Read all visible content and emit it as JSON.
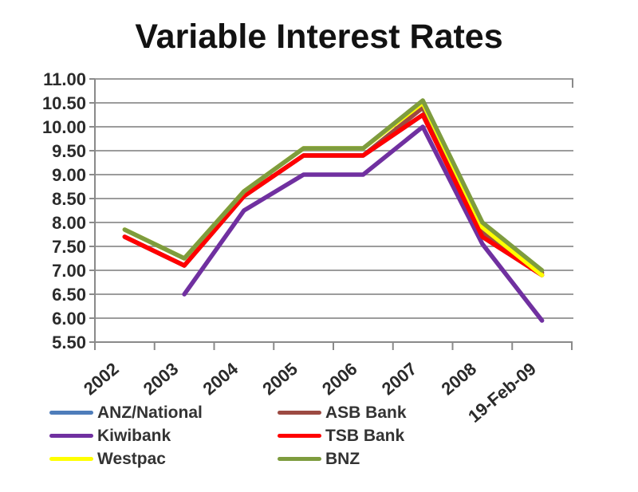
{
  "chart_data": {
    "type": "line",
    "title": "Variable Interest Rates",
    "categories": [
      "2002",
      "2003",
      "2004",
      "2005",
      "2006",
      "2007",
      "2008",
      "19-Feb-09"
    ],
    "series": [
      {
        "name": "ANZ/National",
        "color": "#4E7DBA",
        "values": [
          7.7,
          7.1,
          8.55,
          9.4,
          9.4,
          10.25,
          7.7,
          6.9
        ]
      },
      {
        "name": "ASB Bank",
        "color": "#9C4A42",
        "values": [
          7.7,
          7.1,
          8.55,
          9.4,
          9.4,
          10.4,
          7.8,
          6.95
        ]
      },
      {
        "name": "Kiwibank",
        "color": "#7030A0",
        "values": [
          null,
          6.5,
          8.25,
          9.0,
          9.0,
          10.0,
          7.55,
          5.95
        ]
      },
      {
        "name": "TSB Bank",
        "color": "#FF0000",
        "values": [
          7.7,
          7.1,
          8.55,
          9.4,
          9.4,
          10.25,
          7.7,
          6.9
        ]
      },
      {
        "name": "Westpac",
        "color": "#FFFF00",
        "values": [
          7.85,
          7.25,
          8.65,
          9.55,
          9.55,
          10.5,
          7.9,
          6.9
        ]
      },
      {
        "name": "BNZ",
        "color": "#7E9C3E",
        "values": [
          7.85,
          7.25,
          8.65,
          9.55,
          9.55,
          10.55,
          8.0,
          7.0
        ]
      }
    ],
    "ylim": [
      5.5,
      11.0
    ],
    "y_tick_labels": [
      "11.00",
      "10.50",
      "10.00",
      "9.50",
      "9.00",
      "8.50",
      "8.00",
      "7.50",
      "7.00",
      "6.50",
      "6.00",
      "5.50"
    ],
    "grid": true,
    "legend_position": "bottom",
    "legend_columns": 2,
    "grid_color": "#9c9c9c",
    "axis_color": "#8a8a8a",
    "text_color": "#2b2b2b"
  }
}
